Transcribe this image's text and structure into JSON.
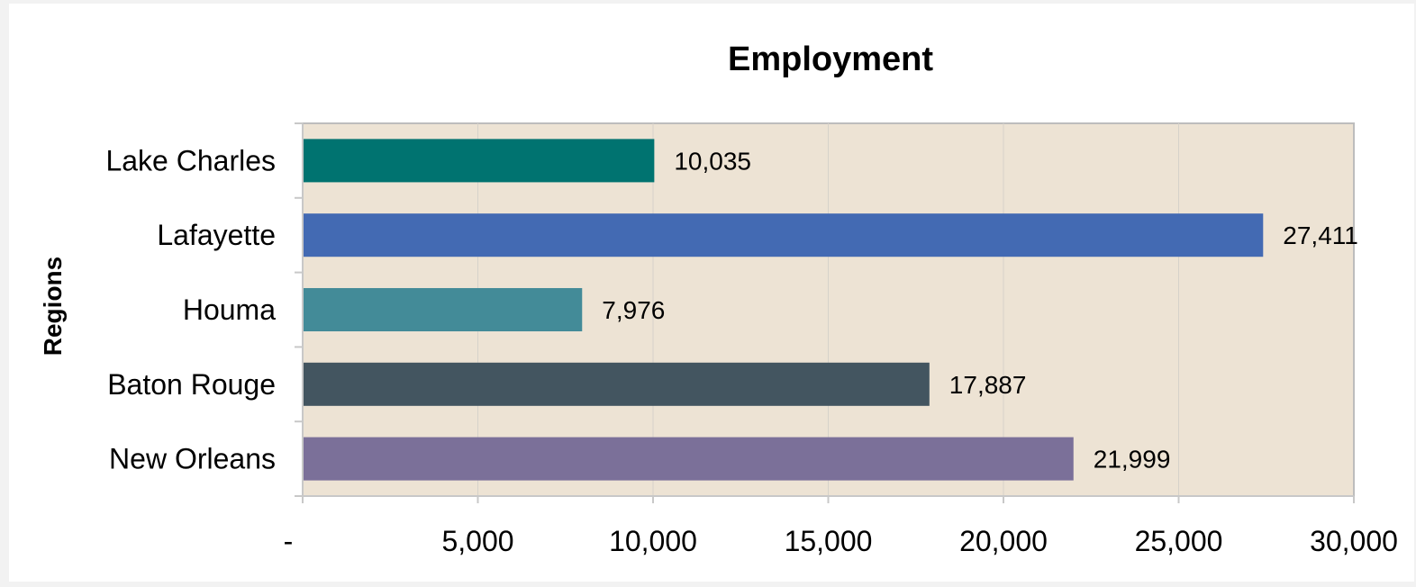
{
  "chart_data": {
    "type": "bar",
    "orientation": "horizontal",
    "title": "Employment",
    "xlabel": "",
    "ylabel": "Regions",
    "categories": [
      "Lake Charles",
      "Lafayette",
      "Houma",
      "Baton Rouge",
      "New Orleans"
    ],
    "values": [
      10035,
      27411,
      7976,
      17887,
      21999
    ],
    "data_labels": [
      "10,035",
      "27,411",
      "7,976",
      "17,887",
      "21,999"
    ],
    "colors": [
      "#007370",
      "#436ab3",
      "#438b98",
      "#435560",
      "#7b7099"
    ],
    "xlim": [
      0,
      30000
    ],
    "xticks": [
      0,
      5000,
      10000,
      15000,
      20000,
      25000,
      30000
    ],
    "xtick_labels": [
      "-",
      "5,000",
      "10,000",
      "15,000",
      "20,000",
      "25,000",
      "30,000"
    ],
    "grid": "vertical",
    "plot_background": "#ede3d4",
    "legend": "none"
  }
}
